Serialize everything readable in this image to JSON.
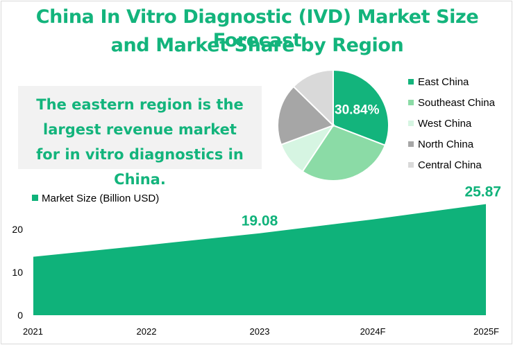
{
  "title_line1": "China In Vitro Diagnostic (IVD) Market Size Forecast",
  "title_line2": "and Market Share by Region",
  "callout": "The eastern region is the largest revenue market for in vitro diagnostics in China.",
  "chart_data": [
    {
      "type": "area",
      "categories": [
        "2021",
        "2022",
        "2023",
        "2024F",
        "2025F"
      ],
      "series": [
        {
          "name": "Market Size (Billion USD)",
          "values": [
            13.6,
            16.3,
            19.08,
            22.3,
            25.87
          ],
          "color": "#0fb27a"
        }
      ],
      "data_labels": [
        {
          "category": "2023",
          "text": "19.08"
        },
        {
          "category": "2025F",
          "text": "25.87"
        }
      ],
      "yticks": [
        0,
        10,
        20
      ],
      "ylim": [
        0,
        30
      ],
      "grid": false,
      "legend_position": "top-left"
    },
    {
      "type": "pie",
      "slices": [
        {
          "label": "East China",
          "value": 30.84,
          "color": "#13b47c"
        },
        {
          "label": "Southeast China",
          "value": 28.5,
          "color": "#8bdba6"
        },
        {
          "label": "West China",
          "value": 10.0,
          "color": "#d6f5e2"
        },
        {
          "label": "North China",
          "value": 18.0,
          "color": "#a6a6a6"
        },
        {
          "label": "Central China",
          "value": 12.66,
          "color": "#d9d9d9"
        }
      ],
      "data_labels": [
        {
          "label": "East China",
          "text": "30.84%"
        }
      ],
      "legend_position": "right"
    }
  ]
}
